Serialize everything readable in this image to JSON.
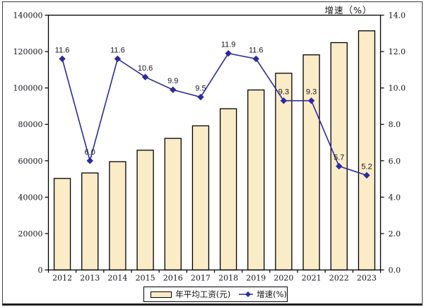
{
  "chart_data": {
    "type": "bar+line",
    "categories": [
      "2012",
      "2013",
      "2014",
      "2015",
      "2016",
      "2017",
      "2018",
      "2019",
      "2020",
      "2021",
      "2022",
      "2023"
    ],
    "series": [
      {
        "name": "年平均工资(元)",
        "type": "bar",
        "axis": "left",
        "values": [
          50300,
          53300,
          59500,
          65800,
          72300,
          79200,
          88600,
          98900,
          108100,
          118200,
          124900,
          131400
        ]
      },
      {
        "name": "增速(%)",
        "type": "line",
        "axis": "right",
        "values": [
          11.6,
          6.0,
          11.6,
          10.6,
          9.9,
          9.5,
          11.9,
          11.6,
          9.3,
          9.3,
          5.7,
          5.2
        ],
        "point_labels": [
          "11.6",
          "6.0",
          "11.6",
          "10.6",
          "9.9",
          "9.5",
          "11.9",
          "11.6",
          "9.3",
          "9.3",
          "5.7",
          "5.2"
        ]
      }
    ],
    "left_axis": {
      "min": 0,
      "max": 140000,
      "tick_step": 20000,
      "tick_labels": [
        "0",
        "20000",
        "40000",
        "60000",
        "80000",
        "100000",
        "120000",
        "140000"
      ]
    },
    "right_axis": {
      "min": 0,
      "max": 14,
      "tick_step": 2,
      "title": "增速（%）",
      "tick_labels": [
        "0.0",
        "2.0",
        "4.0",
        "6.0",
        "8.0",
        "10.0",
        "12.0",
        "14.0"
      ]
    },
    "grid": false,
    "legend_position": "bottom",
    "colors": {
      "bar_fill": "#FBECC8",
      "bar_border": "#000000",
      "line": "#2B2BA0",
      "text": "#15151f"
    }
  }
}
